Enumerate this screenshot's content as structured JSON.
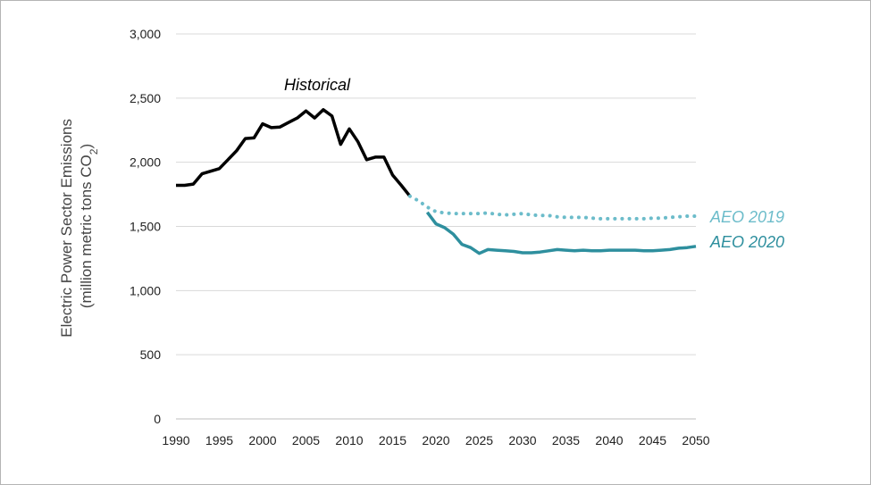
{
  "chart_data": {
    "type": "line",
    "title": "",
    "ylabel_line1": "Electric Power Sector Emissions",
    "ylabel_line2_pre": "(million metric tons CO",
    "ylabel_line2_sub": "2",
    "ylabel_line2_post": ")",
    "xlabel": "",
    "xlim": [
      1990,
      2050
    ],
    "ylim": [
      0,
      3000
    ],
    "x_ticks": [
      1990,
      1995,
      2000,
      2005,
      2010,
      2015,
      2020,
      2025,
      2030,
      2035,
      2040,
      2045,
      2050
    ],
    "y_ticks": [
      0,
      500,
      1000,
      1500,
      2000,
      2500,
      3000
    ],
    "y_tick_labels": [
      "0",
      "500",
      "1,000",
      "1,500",
      "2,000",
      "2,500",
      "3,000"
    ],
    "grid": "horizontal",
    "series": [
      {
        "name": "Historical",
        "color": "#000000",
        "style": "solid",
        "x": [
          1990,
          1991,
          1992,
          1993,
          1994,
          1995,
          1996,
          1997,
          1998,
          1999,
          2000,
          2001,
          2002,
          2003,
          2004,
          2005,
          2006,
          2007,
          2008,
          2009,
          2010,
          2011,
          2012,
          2013,
          2014,
          2015,
          2016,
          2017
        ],
        "y": [
          1820,
          1820,
          1830,
          1910,
          1930,
          1950,
          2020,
          2090,
          2185,
          2190,
          2300,
          2270,
          2275,
          2310,
          2345,
          2400,
          2345,
          2410,
          2360,
          2140,
          2260,
          2160,
          2020,
          2040,
          2040,
          1900,
          1820,
          1735
        ]
      },
      {
        "name": "AEO 2019",
        "color": "#6cbcca",
        "style": "dotted",
        "x": [
          2017,
          2018,
          2019,
          2020,
          2021,
          2022,
          2023,
          2024,
          2025,
          2026,
          2027,
          2028,
          2029,
          2030,
          2031,
          2032,
          2033,
          2034,
          2035,
          2036,
          2037,
          2038,
          2039,
          2040,
          2041,
          2042,
          2043,
          2044,
          2045,
          2046,
          2047,
          2048,
          2049,
          2050
        ],
        "y": [
          1735,
          1700,
          1650,
          1615,
          1605,
          1600,
          1600,
          1600,
          1600,
          1605,
          1595,
          1590,
          1595,
          1600,
          1590,
          1585,
          1585,
          1575,
          1570,
          1570,
          1570,
          1565,
          1560,
          1560,
          1560,
          1560,
          1560,
          1560,
          1565,
          1565,
          1570,
          1575,
          1580,
          1580
        ]
      },
      {
        "name": "AEO 2020",
        "color": "#2e8f9e",
        "style": "solid",
        "x": [
          2019,
          2020,
          2021,
          2022,
          2023,
          2024,
          2025,
          2026,
          2027,
          2028,
          2029,
          2030,
          2031,
          2032,
          2033,
          2034,
          2035,
          2036,
          2037,
          2038,
          2039,
          2040,
          2041,
          2042,
          2043,
          2044,
          2045,
          2046,
          2047,
          2048,
          2049,
          2050
        ],
        "y": [
          1610,
          1520,
          1490,
          1440,
          1360,
          1335,
          1290,
          1320,
          1315,
          1310,
          1305,
          1295,
          1295,
          1300,
          1310,
          1320,
          1315,
          1310,
          1315,
          1310,
          1310,
          1315,
          1315,
          1315,
          1315,
          1310,
          1310,
          1315,
          1320,
          1330,
          1335,
          1345
        ]
      }
    ],
    "annotations": [
      {
        "text": "Historical",
        "color": "#000000"
      },
      {
        "text": "AEO 2019",
        "color": "#6cbcca"
      },
      {
        "text": "AEO 2020",
        "color": "#2e8f9e"
      }
    ]
  }
}
